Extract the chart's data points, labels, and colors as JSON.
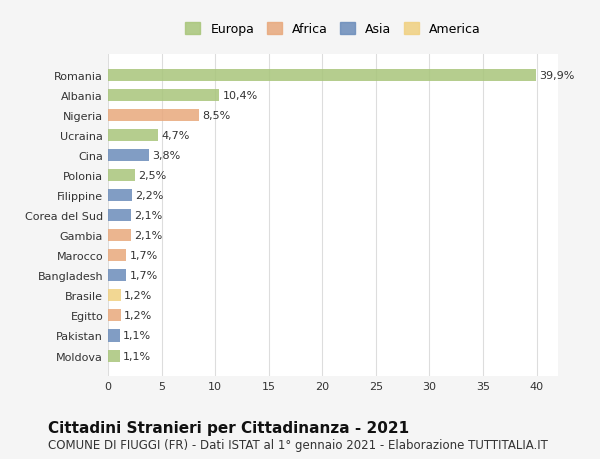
{
  "countries": [
    "Romania",
    "Albania",
    "Nigeria",
    "Ucraina",
    "Cina",
    "Polonia",
    "Filippine",
    "Corea del Sud",
    "Gambia",
    "Marocco",
    "Bangladesh",
    "Brasile",
    "Egitto",
    "Pakistan",
    "Moldova"
  ],
  "values": [
    39.9,
    10.4,
    8.5,
    4.7,
    3.8,
    2.5,
    2.2,
    2.1,
    2.1,
    1.7,
    1.7,
    1.2,
    1.2,
    1.1,
    1.1
  ],
  "labels": [
    "39,9%",
    "10,4%",
    "8,5%",
    "4,7%",
    "3,8%",
    "2,5%",
    "2,2%",
    "2,1%",
    "2,1%",
    "1,7%",
    "1,7%",
    "1,2%",
    "1,2%",
    "1,1%",
    "1,1%"
  ],
  "continents": [
    "Europa",
    "Europa",
    "Africa",
    "Europa",
    "Asia",
    "Europa",
    "Asia",
    "Asia",
    "Africa",
    "Africa",
    "Asia",
    "America",
    "Africa",
    "Asia",
    "Europa"
  ],
  "continent_colors": {
    "Europa": "#a8c57a",
    "Africa": "#e8a87c",
    "Asia": "#6b8cba",
    "America": "#f0d080"
  },
  "legend_order": [
    "Europa",
    "Africa",
    "Asia",
    "America"
  ],
  "xlim": [
    0,
    42
  ],
  "xticks": [
    0,
    5,
    10,
    15,
    20,
    25,
    30,
    35,
    40
  ],
  "title": "Cittadini Stranieri per Cittadinanza - 2021",
  "subtitle": "COMUNE DI FIUGGI (FR) - Dati ISTAT al 1° gennaio 2021 - Elaborazione TUTTITALIA.IT",
  "bg_color": "#f5f5f5",
  "plot_bg_color": "#ffffff",
  "grid_color": "#dddddd",
  "title_fontsize": 11,
  "subtitle_fontsize": 8.5,
  "label_fontsize": 8,
  "tick_fontsize": 8,
  "legend_fontsize": 9
}
